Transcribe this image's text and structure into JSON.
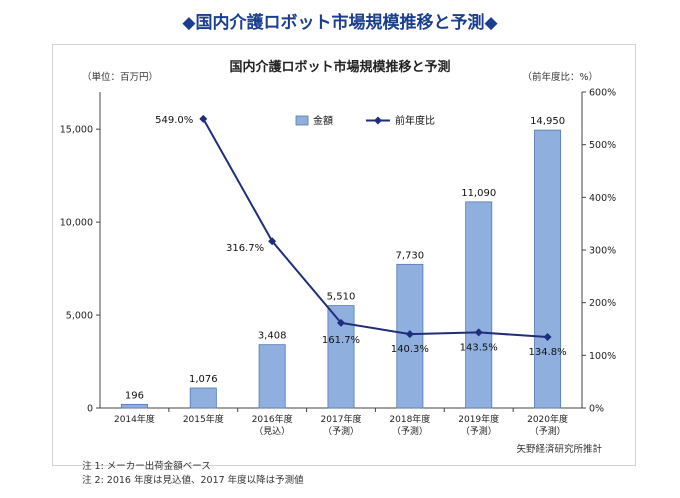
{
  "header": {
    "title": "◆国内介護ロボット市場規模推移と予測◆"
  },
  "chart_data": {
    "type": "bar",
    "title": "国内介護ロボット市場規模推移と予測",
    "y_left_unit": "（単位：百万円）",
    "y_right_unit": "（前年度比：%）",
    "categories": [
      [
        "2014年度"
      ],
      [
        "2015年度"
      ],
      [
        "2016年度",
        "（見込）"
      ],
      [
        "2017年度",
        "（予測）"
      ],
      [
        "2018年度",
        "（予測）"
      ],
      [
        "2019年度",
        "（予測）"
      ],
      [
        "2020年度",
        "（予測）"
      ]
    ],
    "y_left_ticks": [
      "0",
      "5,000",
      "10,000",
      "15,000"
    ],
    "y_left_tick_values": [
      0,
      5000,
      10000,
      15000
    ],
    "y_left_lim": [
      0,
      17000
    ],
    "y_right_ticks": [
      "0%",
      "100%",
      "200%",
      "300%",
      "400%",
      "500%",
      "600%"
    ],
    "y_right_tick_values": [
      0,
      100,
      200,
      300,
      400,
      500,
      600
    ],
    "y_right_lim": [
      0,
      600
    ],
    "legend": {
      "placement": "top-center"
    },
    "series": [
      {
        "name": "金額",
        "kind": "bar",
        "axis": "left",
        "values": [
          196,
          1076,
          3408,
          5510,
          7730,
          11090,
          14950
        ],
        "labels": [
          "196",
          "1,076",
          "3,408",
          "5,510",
          "7,730",
          "11,090",
          "14,950"
        ],
        "color": "#8fb0de"
      },
      {
        "name": "前年度比",
        "kind": "line",
        "axis": "right",
        "values": [
          null,
          549.0,
          316.7,
          161.7,
          140.3,
          143.5,
          134.8
        ],
        "labels": [
          "",
          "549.0%",
          "316.7%",
          "161.7%",
          "140.3%",
          "143.5%",
          "134.8%"
        ],
        "color": "#1f2d7a"
      }
    ]
  },
  "notes": [
    "注 1:  メーカー出荷金額ベース",
    "注 2:  2016 年度は見込値、2017 年度以降は予測値"
  ],
  "source": "矢野経済研究所推計"
}
